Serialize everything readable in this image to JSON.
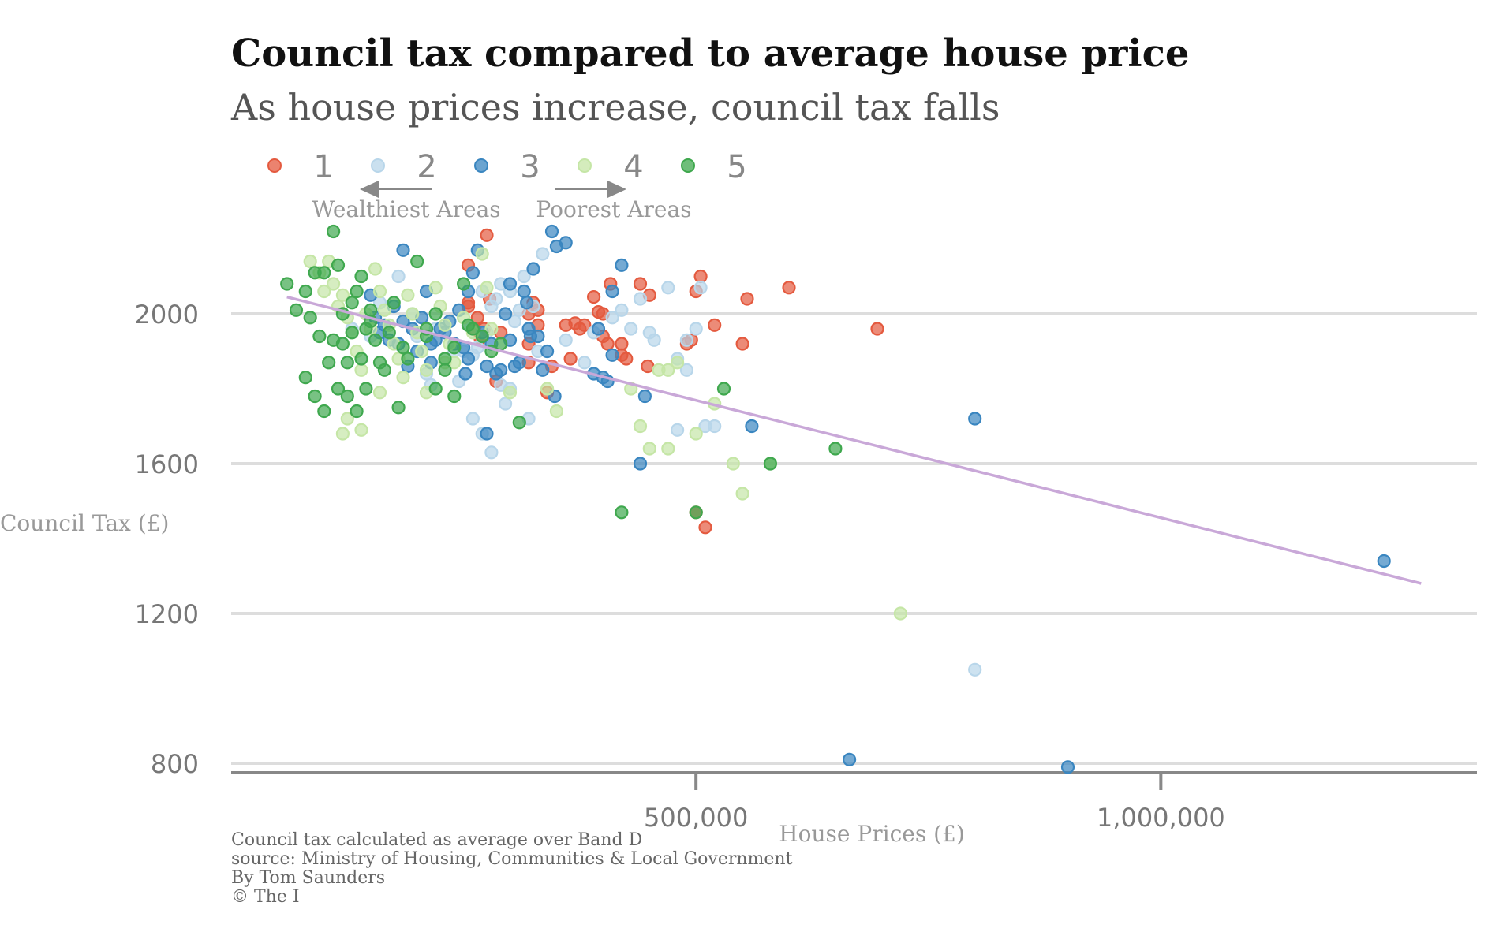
{
  "title": "Council tax compared to average house price",
  "subtitle": "As house prices increase, council tax falls",
  "legend": [
    {
      "label": "1",
      "color": "#e45a3f"
    },
    {
      "label": "2",
      "color": "#b8d6ea"
    },
    {
      "label": "3",
      "color": "#3a86c0"
    },
    {
      "label": "4",
      "color": "#c5e6a6"
    },
    {
      "label": "5",
      "color": "#3fa84e"
    }
  ],
  "annotations": {
    "left": "Wealthiest Areas",
    "right": "Poorest Areas"
  },
  "footnotes": [
    "Council tax calculated as average over Band D",
    "source: Ministry of Housing, Communities & Local Government",
    "By Tom Saunders",
    "© The I"
  ],
  "chart_data": {
    "type": "scatter",
    "title": "Council tax compared to average house price",
    "subtitle": "As house prices increase, council tax falls",
    "xlabel": "House Prices (£)",
    "ylabel": "Council Tax (£)",
    "xlim": [
      0,
      1340000
    ],
    "ylim": [
      760,
      2260
    ],
    "xticks": [
      {
        "value": 500000,
        "label": "500,000"
      },
      {
        "value": 1000000,
        "label": "1,000,000"
      }
    ],
    "yticks": [
      {
        "value": 800,
        "label": "800"
      },
      {
        "value": 1200,
        "label": "1200"
      },
      {
        "value": 1600,
        "label": "1600"
      },
      {
        "value": 2000,
        "label": "2000"
      }
    ],
    "grid": "horizontal",
    "legend_position": "top",
    "trendline": {
      "x": [
        60000,
        1280000
      ],
      "y": [
        2045,
        1280
      ],
      "color": "#c9a8d8"
    },
    "series": [
      {
        "name": "1",
        "color": "#e45a3f",
        "points": [
          [
            255000,
            2030
          ],
          [
            275000,
            2210
          ],
          [
            255000,
            2130
          ],
          [
            255000,
            2020
          ],
          [
            262000,
            1960
          ],
          [
            265000,
            1990
          ],
          [
            268000,
            1935
          ],
          [
            272000,
            1960
          ],
          [
            278000,
            2040
          ],
          [
            285000,
            1820
          ],
          [
            290000,
            1950
          ],
          [
            320000,
            2000
          ],
          [
            325000,
            2030
          ],
          [
            330000,
            2010
          ],
          [
            330000,
            1970
          ],
          [
            320000,
            1920
          ],
          [
            320000,
            1870
          ],
          [
            340000,
            1790
          ],
          [
            345000,
            1860
          ],
          [
            360000,
            1970
          ],
          [
            365000,
            1880
          ],
          [
            370000,
            1975
          ],
          [
            375000,
            1960
          ],
          [
            380000,
            1970
          ],
          [
            390000,
            2045
          ],
          [
            395000,
            2005
          ],
          [
            400000,
            1940
          ],
          [
            400000,
            2000
          ],
          [
            405000,
            1920
          ],
          [
            408000,
            2080
          ],
          [
            420000,
            1920
          ],
          [
            420000,
            1890
          ],
          [
            425000,
            1880
          ],
          [
            440000,
            2080
          ],
          [
            448000,
            1860
          ],
          [
            450000,
            2050
          ],
          [
            490000,
            1920
          ],
          [
            495000,
            1930
          ],
          [
            500000,
            2060
          ],
          [
            505000,
            2100
          ],
          [
            500000,
            1470
          ],
          [
            510000,
            1430
          ],
          [
            520000,
            1970
          ],
          [
            550000,
            1920
          ],
          [
            555000,
            2040
          ],
          [
            600000,
            2070
          ],
          [
            695000,
            1960
          ]
        ]
      },
      {
        "name": "2",
        "color": "#b8d6ea",
        "points": [
          [
            130000,
            1960
          ],
          [
            150000,
            1940
          ],
          [
            160000,
            2030
          ],
          [
            180000,
            2100
          ],
          [
            195000,
            2000
          ],
          [
            200000,
            1940
          ],
          [
            210000,
            1840
          ],
          [
            215000,
            1810
          ],
          [
            220000,
            1960
          ],
          [
            240000,
            1900
          ],
          [
            245000,
            1820
          ],
          [
            250000,
            1900
          ],
          [
            255000,
            1970
          ],
          [
            260000,
            1890
          ],
          [
            265000,
            1910
          ],
          [
            270000,
            2060
          ],
          [
            275000,
            1950
          ],
          [
            280000,
            2020
          ],
          [
            285000,
            2040
          ],
          [
            290000,
            2080
          ],
          [
            290000,
            1810
          ],
          [
            295000,
            1760
          ],
          [
            300000,
            2060
          ],
          [
            305000,
            1980
          ],
          [
            310000,
            2010
          ],
          [
            315000,
            2100
          ],
          [
            325000,
            2020
          ],
          [
            330000,
            1900
          ],
          [
            335000,
            2160
          ],
          [
            260000,
            1720
          ],
          [
            270000,
            1680
          ],
          [
            280000,
            1630
          ],
          [
            300000,
            1800
          ],
          [
            320000,
            1720
          ],
          [
            360000,
            1930
          ],
          [
            380000,
            1870
          ],
          [
            390000,
            1950
          ],
          [
            410000,
            1990
          ],
          [
            420000,
            2010
          ],
          [
            430000,
            1960
          ],
          [
            440000,
            2040
          ],
          [
            450000,
            1950
          ],
          [
            455000,
            1930
          ],
          [
            470000,
            2070
          ],
          [
            480000,
            1880
          ],
          [
            490000,
            1850
          ],
          [
            490000,
            1930
          ],
          [
            500000,
            1960
          ],
          [
            505000,
            2070
          ],
          [
            510000,
            1700
          ],
          [
            520000,
            1700
          ],
          [
            480000,
            1690
          ],
          [
            800000,
            1050
          ]
        ]
      },
      {
        "name": "3",
        "color": "#3a86c0",
        "points": [
          [
            150000,
            2050
          ],
          [
            155000,
            1990
          ],
          [
            160000,
            1950
          ],
          [
            165000,
            1970
          ],
          [
            170000,
            1930
          ],
          [
            175000,
            2020
          ],
          [
            180000,
            1920
          ],
          [
            185000,
            2170
          ],
          [
            185000,
            1980
          ],
          [
            190000,
            1860
          ],
          [
            195000,
            1960
          ],
          [
            200000,
            1900
          ],
          [
            205000,
            1990
          ],
          [
            210000,
            2060
          ],
          [
            215000,
            1870
          ],
          [
            215000,
            1920
          ],
          [
            220000,
            1930
          ],
          [
            225000,
            1960
          ],
          [
            230000,
            1950
          ],
          [
            235000,
            1980
          ],
          [
            240000,
            1920
          ],
          [
            245000,
            2010
          ],
          [
            250000,
            1910
          ],
          [
            255000,
            2060
          ],
          [
            255000,
            1880
          ],
          [
            260000,
            2110
          ],
          [
            265000,
            2170
          ],
          [
            270000,
            1950
          ],
          [
            275000,
            1860
          ],
          [
            280000,
            1920
          ],
          [
            285000,
            1840
          ],
          [
            290000,
            1850
          ],
          [
            295000,
            2000
          ],
          [
            300000,
            2080
          ],
          [
            300000,
            1930
          ],
          [
            305000,
            1860
          ],
          [
            310000,
            1870
          ],
          [
            315000,
            2060
          ],
          [
            318000,
            2030
          ],
          [
            320000,
            1960
          ],
          [
            322000,
            1940
          ],
          [
            325000,
            2120
          ],
          [
            330000,
            1940
          ],
          [
            335000,
            1850
          ],
          [
            340000,
            1900
          ],
          [
            345000,
            2220
          ],
          [
            348000,
            1780
          ],
          [
            252000,
            1840
          ],
          [
            275000,
            1680
          ],
          [
            350000,
            2180
          ],
          [
            360000,
            2190
          ],
          [
            390000,
            1840
          ],
          [
            395000,
            1960
          ],
          [
            400000,
            1830
          ],
          [
            405000,
            1820
          ],
          [
            410000,
            1890
          ],
          [
            410000,
            2060
          ],
          [
            420000,
            2130
          ],
          [
            440000,
            1600
          ],
          [
            445000,
            1780
          ],
          [
            560000,
            1700
          ],
          [
            665000,
            810
          ],
          [
            800000,
            1720
          ],
          [
            900000,
            790
          ],
          [
            1240000,
            1340
          ]
        ]
      },
      {
        "name": "4",
        "color": "#c5e6a6",
        "points": [
          [
            85000,
            2140
          ],
          [
            95000,
            2110
          ],
          [
            100000,
            2060
          ],
          [
            105000,
            2140
          ],
          [
            110000,
            2080
          ],
          [
            115000,
            2020
          ],
          [
            120000,
            2050
          ],
          [
            125000,
            1990
          ],
          [
            130000,
            1950
          ],
          [
            135000,
            1900
          ],
          [
            140000,
            1850
          ],
          [
            145000,
            2000
          ],
          [
            150000,
            1960
          ],
          [
            155000,
            2120
          ],
          [
            160000,
            2060
          ],
          [
            165000,
            2010
          ],
          [
            170000,
            1970
          ],
          [
            175000,
            1920
          ],
          [
            180000,
            1880
          ],
          [
            185000,
            1830
          ],
          [
            190000,
            2050
          ],
          [
            195000,
            2000
          ],
          [
            200000,
            1950
          ],
          [
            205000,
            1900
          ],
          [
            210000,
            1850
          ],
          [
            220000,
            2070
          ],
          [
            225000,
            2020
          ],
          [
            230000,
            1970
          ],
          [
            235000,
            1920
          ],
          [
            240000,
            1870
          ],
          [
            250000,
            1990
          ],
          [
            260000,
            1950
          ],
          [
            270000,
            2160
          ],
          [
            275000,
            2070
          ],
          [
            280000,
            1960
          ],
          [
            300000,
            1790
          ],
          [
            340000,
            1800
          ],
          [
            350000,
            1740
          ],
          [
            120000,
            1680
          ],
          [
            125000,
            1720
          ],
          [
            140000,
            1690
          ],
          [
            160000,
            1790
          ],
          [
            210000,
            1790
          ],
          [
            230000,
            1870
          ],
          [
            430000,
            1800
          ],
          [
            440000,
            1700
          ],
          [
            450000,
            1640
          ],
          [
            460000,
            1850
          ],
          [
            470000,
            1640
          ],
          [
            500000,
            1680
          ],
          [
            520000,
            1760
          ],
          [
            540000,
            1600
          ],
          [
            550000,
            1520
          ],
          [
            580000,
            1600
          ],
          [
            470000,
            1850
          ],
          [
            480000,
            1870
          ],
          [
            720000,
            1200
          ]
        ]
      },
      {
        "name": "5",
        "color": "#3fa84e",
        "points": [
          [
            60000,
            2080
          ],
          [
            70000,
            2010
          ],
          [
            80000,
            2060
          ],
          [
            85000,
            1990
          ],
          [
            90000,
            2110
          ],
          [
            95000,
            1940
          ],
          [
            100000,
            2110
          ],
          [
            105000,
            1870
          ],
          [
            110000,
            1930
          ],
          [
            115000,
            2130
          ],
          [
            120000,
            2000
          ],
          [
            125000,
            1870
          ],
          [
            130000,
            1950
          ],
          [
            135000,
            1740
          ],
          [
            140000,
            2100
          ],
          [
            145000,
            1800
          ],
          [
            150000,
            1980
          ],
          [
            155000,
            1930
          ],
          [
            160000,
            1870
          ],
          [
            165000,
            1850
          ],
          [
            170000,
            1950
          ],
          [
            175000,
            2030
          ],
          [
            180000,
            1750
          ],
          [
            185000,
            1910
          ],
          [
            190000,
            1880
          ],
          [
            80000,
            1830
          ],
          [
            90000,
            1780
          ],
          [
            100000,
            1740
          ],
          [
            115000,
            1800
          ],
          [
            125000,
            1780
          ],
          [
            110000,
            2220
          ],
          [
            120000,
            1920
          ],
          [
            130000,
            2030
          ],
          [
            135000,
            2060
          ],
          [
            140000,
            1880
          ],
          [
            145000,
            1960
          ],
          [
            150000,
            2010
          ],
          [
            200000,
            2140
          ],
          [
            210000,
            1960
          ],
          [
            220000,
            2000
          ],
          [
            230000,
            1850
          ],
          [
            240000,
            1910
          ],
          [
            250000,
            2080
          ],
          [
            260000,
            1960
          ],
          [
            270000,
            1940
          ],
          [
            280000,
            1900
          ],
          [
            290000,
            1920
          ],
          [
            310000,
            1710
          ],
          [
            420000,
            1470
          ],
          [
            500000,
            1470
          ],
          [
            530000,
            1800
          ],
          [
            580000,
            1600
          ],
          [
            650000,
            1640
          ],
          [
            210000,
            1940
          ],
          [
            220000,
            1800
          ],
          [
            230000,
            1880
          ],
          [
            240000,
            1780
          ],
          [
            255000,
            1970
          ]
        ]
      }
    ]
  }
}
